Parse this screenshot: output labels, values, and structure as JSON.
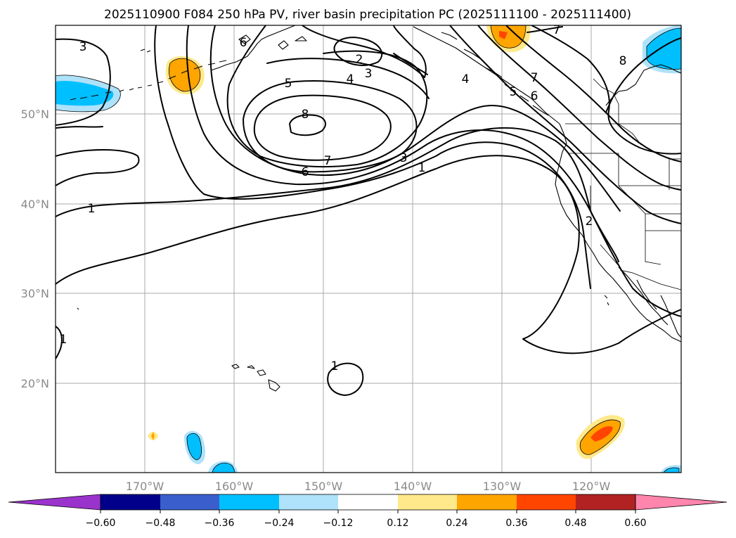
{
  "title": "2025110900 F084 250 hPa PV, river basin precipitation PC (2025111100 - 2025111400)",
  "map": {
    "lat_labels": [
      "50°N",
      "40°N",
      "30°N",
      "20°N"
    ],
    "lon_labels": [
      "170°W",
      "160°W",
      "150°W",
      "140°W",
      "130°W",
      "120°W"
    ],
    "contour_labels": [
      "3",
      "6",
      "2",
      "3",
      "4",
      "5",
      "8",
      "7",
      "6",
      "3",
      "1",
      "1",
      "1",
      "1",
      "4",
      "5",
      "6",
      "7",
      "8",
      "2",
      "7"
    ]
  },
  "colorbar": {
    "ticks": [
      "−0.60",
      "−0.48",
      "−0.36",
      "−0.24",
      "−0.12",
      "0.12",
      "0.24",
      "0.36",
      "0.48",
      "0.60"
    ],
    "colors": [
      "#9a33cc",
      "#00008b",
      "#3a5fcd",
      "#00bfff",
      "#aee2fa",
      "#ffffff",
      "#ffe98a",
      "#ffa500",
      "#ff4500",
      "#b22222",
      "#ff85ad"
    ]
  },
  "shading": {
    "neg_light": "#aee2fa",
    "neg_mid": "#00bfff",
    "pos_light": "#ffe98a",
    "pos_mid": "#ffa500",
    "pos_strong": "#ff4500"
  }
}
